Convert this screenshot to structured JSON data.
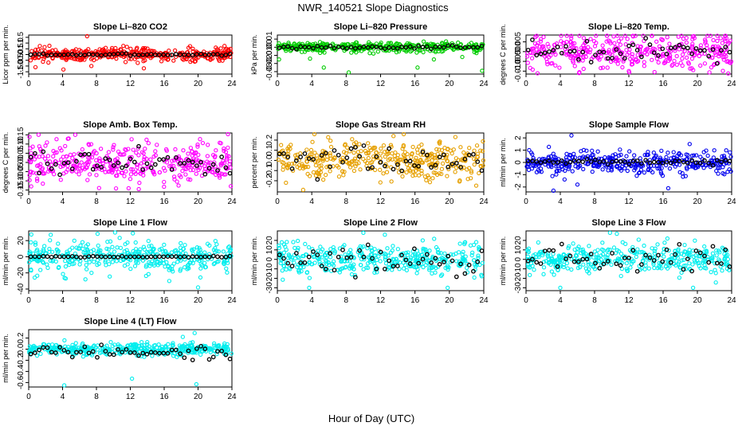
{
  "figure": {
    "title": "NWR_140521  Slope Diagnostics",
    "xlabel": "Hour of Day (UTC)"
  },
  "chart_data": [
    {
      "type": "scatter",
      "title": "Slope Li–820 CO2",
      "ylabel": "Licor ppm per min.",
      "xlim": [
        0,
        24
      ],
      "ylim": [
        -1.7,
        1.7
      ],
      "xticks": [
        "0",
        "4",
        "8",
        "12",
        "16",
        "20",
        "24"
      ],
      "yticks": [
        -1.5,
        -1.0,
        -0.5,
        0.0,
        0.5,
        1.0,
        1.5
      ],
      "ytick_labels": [
        "-1.5",
        "-1.0",
        "-0.5",
        "0.0",
        "0.5",
        "1.0",
        "1.5"
      ],
      "scatter_color": "#ff0000",
      "scatter_spread": 0.28,
      "outliers": [
        [
          4.1,
          -1.3
        ],
        [
          6.9,
          1.6
        ],
        [
          7.4,
          -1.0
        ],
        [
          13.6,
          -1.2
        ],
        [
          0.8,
          -1.1
        ]
      ],
      "black_level": 0.0,
      "black_spread": 0.04
    },
    {
      "type": "scatter",
      "title": "Slope Li–820 Pressure",
      "ylabel": "kPa per min.",
      "xlim": [
        0,
        24
      ],
      "ylim": [
        -0.033,
        0.015
      ],
      "xticks": [
        "0",
        "4",
        "8",
        "12",
        "16",
        "20",
        "24"
      ],
      "yticks": [
        -0.03,
        -0.02,
        -0.01,
        0.0,
        0.01
      ],
      "ytick_labels": [
        "-0.03",
        "-0.02",
        "-0.01",
        "0.00",
        "0.01"
      ],
      "scatter_color": "#00cc00",
      "scatter_spread": 0.003,
      "outliers": [
        [
          0.2,
          -0.015
        ],
        [
          3.8,
          -0.014
        ],
        [
          5.4,
          -0.025
        ],
        [
          8.3,
          -0.031
        ],
        [
          16.3,
          -0.025
        ],
        [
          21.5,
          -0.012
        ],
        [
          23.8,
          -0.029
        ],
        [
          18.2,
          -0.015
        ]
      ],
      "black_level": 0.0,
      "black_spread": 0.001
    },
    {
      "type": "scatter",
      "title": "Slope Li–820 Temp.",
      "ylabel": "degrees C per min.",
      "xlim": [
        0,
        24
      ],
      "ylim": [
        -0.0115,
        0.0085
      ],
      "xticks": [
        "0",
        "4",
        "8",
        "12",
        "16",
        "20",
        "24"
      ],
      "yticks": [
        -0.01,
        -0.005,
        0.0,
        0.005
      ],
      "ytick_labels": [
        "-0.010",
        "-0.005",
        "0.000",
        "0.005"
      ],
      "scatter_color": "#ff00ff",
      "scatter_spread": 0.0045,
      "outliers": [
        [
          1.1,
          0.0075
        ],
        [
          6.2,
          -0.011
        ],
        [
          12.5,
          0.0078
        ],
        [
          15.0,
          -0.0105
        ],
        [
          23.6,
          -0.0112
        ]
      ],
      "black_level": 0.0,
      "black_spread": 0.0028
    },
    {
      "type": "scatter",
      "title": "Slope Amb. Box Temp.",
      "ylabel": "degrees C per min.",
      "xlim": [
        0,
        24
      ],
      "ylim": [
        -0.16,
        0.16
      ],
      "xticks": [
        "0",
        "4",
        "8",
        "12",
        "16",
        "20",
        "24"
      ],
      "yticks": [
        -0.15,
        -0.1,
        -0.05,
        0.0,
        0.05,
        0.1,
        0.15
      ],
      "ytick_labels": [
        "-0.15",
        "-0.10",
        "-0.05",
        "0.00",
        "0.05",
        "0.10",
        "0.15"
      ],
      "scatter_color": "#ff00ff",
      "scatter_spread": 0.055,
      "outliers": [
        [
          5.5,
          0.15
        ],
        [
          13.0,
          -0.145
        ],
        [
          11.8,
          -0.14
        ],
        [
          0.3,
          -0.13
        ]
      ],
      "black_level": 0.0,
      "black_spread": 0.035
    },
    {
      "type": "scatter",
      "title": "Slope Gas Stream RH",
      "ylabel": "percent per min.",
      "xlim": [
        0,
        24
      ],
      "ylim": [
        -0.31,
        0.27
      ],
      "xticks": [
        "0",
        "4",
        "8",
        "12",
        "16",
        "20",
        "24"
      ],
      "yticks": [
        -0.2,
        -0.1,
        0.0,
        0.1,
        0.2
      ],
      "ytick_labels": [
        "-0.2",
        "-0.1",
        "0.0",
        "0.1",
        "0.2"
      ],
      "scatter_color": "#e6a000",
      "scatter_spread": 0.085,
      "outliers": [
        [
          3.0,
          -0.29
        ],
        [
          13.5,
          0.24
        ],
        [
          1.0,
          -0.22
        ],
        [
          20.7,
          0.23
        ]
      ],
      "black_level": 0.0,
      "black_spread": 0.07
    },
    {
      "type": "scatter",
      "title": "Slope Sample Flow",
      "ylabel": "ml/min per min.",
      "xlim": [
        0,
        24
      ],
      "ylim": [
        -2.4,
        2.4
      ],
      "xticks": [
        "0",
        "4",
        "8",
        "12",
        "16",
        "20",
        "24"
      ],
      "yticks": [
        -2,
        -1,
        0,
        1,
        2
      ],
      "ytick_labels": [
        "-2",
        "-1",
        "0",
        "1",
        "2"
      ],
      "scatter_color": "#0000ee",
      "scatter_spread": 0.45,
      "outliers": [
        [
          3.2,
          -2.3
        ],
        [
          5.3,
          2.2
        ],
        [
          6.0,
          -1.8
        ],
        [
          16.6,
          -2.1
        ],
        [
          19.1,
          1.5
        ]
      ],
      "black_level": 0.05,
      "black_spread": 0.1
    },
    {
      "type": "scatter",
      "title": "Slope Line 1 Flow",
      "ylabel": "ml/min per min.",
      "xlim": [
        0,
        24
      ],
      "ylim": [
        -42,
        32
      ],
      "xticks": [
        "0",
        "4",
        "8",
        "12",
        "16",
        "20",
        "24"
      ],
      "yticks": [
        -40,
        -20,
        0,
        20
      ],
      "ytick_labels": [
        "-40",
        "-20",
        "0",
        "20"
      ],
      "scatter_color": "#00eeee",
      "scatter_spread": 9,
      "outliers": [
        [
          10.2,
          30
        ],
        [
          12.3,
          29
        ],
        [
          20.0,
          -38
        ],
        [
          16.6,
          -30
        ],
        [
          6.7,
          -28
        ]
      ],
      "black_level": 0.0,
      "black_spread": 0.4
    },
    {
      "type": "scatter",
      "title": "Slope Line 2 Flow",
      "ylabel": "ml/min per min.",
      "xlim": [
        0,
        24
      ],
      "ylim": [
        -33,
        30
      ],
      "xticks": [
        "0",
        "4",
        "8",
        "12",
        "16",
        "20",
        "24"
      ],
      "yticks": [
        -30,
        -20,
        -10,
        0,
        10,
        20
      ],
      "ytick_labels": [
        "-30",
        "-20",
        "-10",
        "0",
        "10",
        "20"
      ],
      "scatter_color": "#00eeee",
      "scatter_spread": 8,
      "outliers": [
        [
          3.7,
          -30
        ],
        [
          10.0,
          28
        ],
        [
          16.9,
          20
        ],
        [
          19.8,
          -30
        ],
        [
          12.5,
          26
        ]
      ],
      "black_level": 0.0,
      "black_spread": 7
    },
    {
      "type": "scatter",
      "title": "Slope Line 3 Flow",
      "ylabel": "ml/min per min.",
      "xlim": [
        0,
        24
      ],
      "ylim": [
        -33,
        30
      ],
      "xticks": [
        "0",
        "4",
        "8",
        "12",
        "16",
        "20",
        "24"
      ],
      "yticks": [
        -30,
        -20,
        -10,
        0,
        10,
        20
      ],
      "ytick_labels": [
        "-30",
        "-20",
        "-10",
        "0",
        "10",
        "20"
      ],
      "scatter_color": "#00eeee",
      "scatter_spread": 8,
      "outliers": [
        [
          4.0,
          -30
        ],
        [
          9.8,
          28
        ],
        [
          16.5,
          22
        ],
        [
          19.5,
          -30
        ],
        [
          10.6,
          27
        ]
      ],
      "black_level": 0.0,
      "black_spread": 7
    },
    {
      "type": "scatter",
      "title": "Slope Line 4 (LT) Flow",
      "ylabel": "ml/min per min.",
      "xlim": [
        0,
        24
      ],
      "ylim": [
        -0.68,
        0.35
      ],
      "xticks": [
        "0",
        "4",
        "8",
        "12",
        "16",
        "20",
        "24"
      ],
      "yticks": [
        -0.6,
        -0.4,
        -0.2,
        0.0,
        0.2
      ],
      "ytick_labels": [
        "-0.6",
        "-0.4",
        "-0.2",
        "0.0",
        "0.2"
      ],
      "scatter_color": "#00eeee",
      "scatter_spread": 0.06,
      "outliers": [
        [
          4.2,
          -0.65
        ],
        [
          12.2,
          -0.53
        ],
        [
          19.8,
          -0.63
        ],
        [
          19.6,
          0.29
        ],
        [
          18.2,
          0.22
        ]
      ],
      "black_level": -0.05,
      "black_spread": 0.05
    }
  ]
}
